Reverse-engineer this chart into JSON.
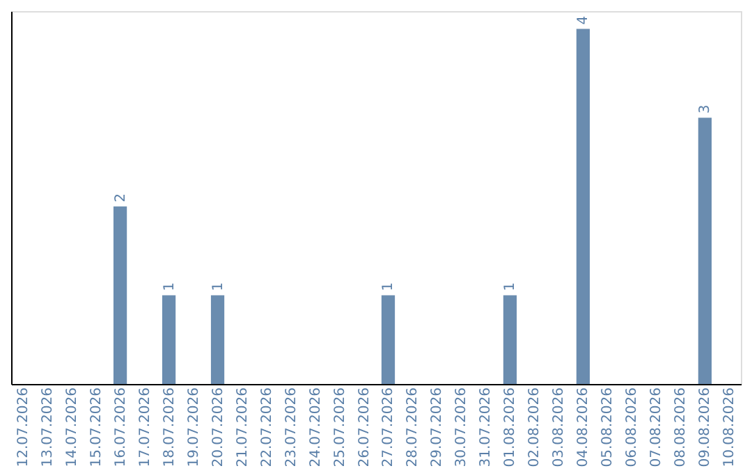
{
  "chart_data": {
    "type": "bar",
    "categories": [
      "12.07.2026",
      "13.07.2026",
      "14.07.2026",
      "15.07.2026",
      "16.07.2026",
      "17.07.2026",
      "18.07.2026",
      "19.07.2026",
      "20.07.2026",
      "21.07.2026",
      "22.07.2026",
      "23.07.2026",
      "24.07.2026",
      "25.07.2026",
      "26.07.2026",
      "27.07.2026",
      "28.07.2026",
      "29.07.2026",
      "30.07.2026",
      "31.07.2026",
      "01.08.2026",
      "02.08.2026",
      "03.08.2026",
      "04.08.2026",
      "05.08.2026",
      "06.08.2026",
      "07.08.2026",
      "08.08.2026",
      "09.08.2026",
      "10.08.2026"
    ],
    "values": [
      0,
      0,
      0,
      0,
      2,
      0,
      1,
      0,
      1,
      0,
      0,
      0,
      0,
      0,
      0,
      1,
      0,
      0,
      0,
      0,
      1,
      0,
      0,
      4,
      0,
      0,
      0,
      0,
      3,
      0
    ],
    "value_labels": [
      null,
      null,
      null,
      null,
      "2",
      null,
      "1",
      null,
      "1",
      null,
      null,
      null,
      null,
      null,
      null,
      "1",
      null,
      null,
      null,
      null,
      "1",
      null,
      null,
      "4",
      null,
      null,
      null,
      null,
      "3",
      null
    ],
    "color": "#6a8caf",
    "ylim": [
      0,
      4.2
    ],
    "tick_labels": "x",
    "grid": false
  }
}
